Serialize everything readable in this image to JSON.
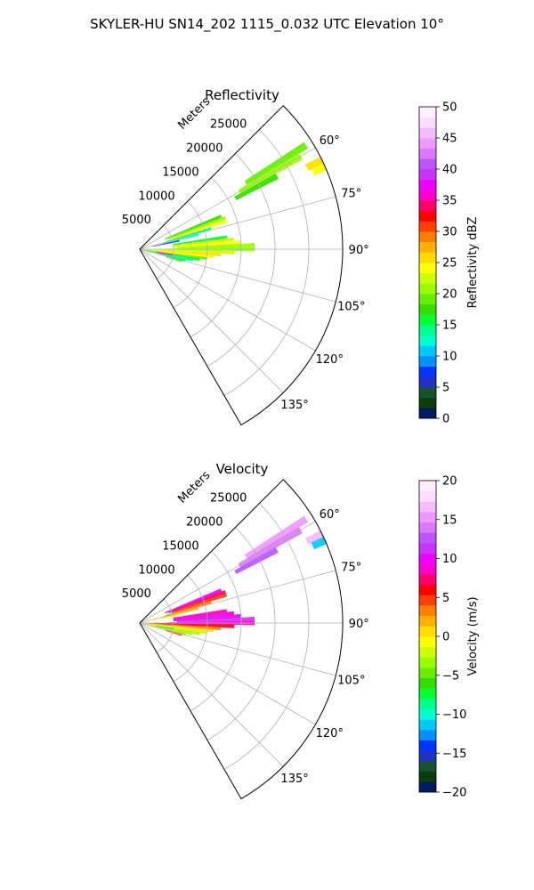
{
  "figure": {
    "suptitle": "SKYLER-HU  SN14_202  1115_0.032 UTC Elevation 10°"
  },
  "chart_data": [
    {
      "type": "heatmap",
      "projection": "polar-sector",
      "title": "Reflectivity",
      "radial_label": "Meters",
      "radial_ticks": [
        5000,
        10000,
        15000,
        20000,
        25000
      ],
      "radial_tick_labels": [
        "5000",
        "10000",
        "15000",
        "20000",
        "25000"
      ],
      "rmax": 30000,
      "azimuth_range_deg": [
        45,
        150
      ],
      "azimuth_ticks": [
        60,
        75,
        90,
        105,
        120,
        135
      ],
      "azimuth_tick_labels": [
        "60°",
        "75°",
        "90°",
        "105°",
        "120°",
        "135°"
      ],
      "grid": true,
      "colorbar": {
        "label": "Reflectivity dBZ",
        "min": 0,
        "max": 50,
        "ticks": [
          0,
          5,
          10,
          15,
          20,
          25,
          30,
          35,
          40,
          45,
          50
        ],
        "tick_labels": [
          "0",
          "5",
          "10",
          "15",
          "20",
          "25",
          "30",
          "35",
          "40",
          "45",
          "50"
        ],
        "colors": [
          "#001a66",
          "#0a3d0a",
          "#14532d",
          "#1f2fbf",
          "#0033ff",
          "#0090ff",
          "#00c8ff",
          "#00ffd0",
          "#00ff90",
          "#00ff33",
          "#33dd00",
          "#66ee00",
          "#99ff00",
          "#ccff00",
          "#ffff00",
          "#ffdd00",
          "#ffb000",
          "#ff8000",
          "#ff4000",
          "#ff0000",
          "#ff0066",
          "#ff00cc",
          "#ee00ff",
          "#cc33ff",
          "#bb55ff",
          "#dd77ff",
          "#ee99ff",
          "#f5bbff",
          "#fbddff",
          "#ffeeff"
        ]
      },
      "echo_cells": [
        {
          "az": 58,
          "r": [
            18500,
            29000
          ],
          "value": 19
        },
        {
          "az": 60,
          "r": [
            17000,
            27500
          ],
          "value": 20
        },
        {
          "az": 62,
          "r": [
            16000,
            23000
          ],
          "value": 18
        },
        {
          "az": 64,
          "r": [
            27500,
            30000
          ],
          "value": 25
        },
        {
          "az": 66,
          "r": [
            28000,
            30000
          ],
          "value": 24
        },
        {
          "az": 68,
          "r": [
            4000,
            13000
          ],
          "value": 18
        },
        {
          "az": 70,
          "r": [
            4500,
            13500
          ],
          "value": 20
        },
        {
          "az": 72,
          "r": [
            5000,
            13500
          ],
          "value": 24
        },
        {
          "az": 74,
          "r": [
            4000,
            11000
          ],
          "value": 14
        },
        {
          "az": 76,
          "r": [
            3500,
            9000
          ],
          "value": 12
        },
        {
          "az": 78,
          "r": [
            2000,
            6000
          ],
          "value": 6
        },
        {
          "az": 82,
          "r": [
            5000,
            13000
          ],
          "value": 16
        },
        {
          "az": 84,
          "r": [
            5000,
            14000
          ],
          "value": 22
        },
        {
          "az": 86,
          "r": [
            5000,
            15000
          ],
          "value": 24
        },
        {
          "az": 88,
          "r": [
            5500,
            17000
          ],
          "value": 21
        },
        {
          "az": 90,
          "r": [
            4000,
            17000
          ],
          "value": 20
        },
        {
          "az": 92,
          "r": [
            1000,
            14000
          ],
          "value": 22
        },
        {
          "az": 94,
          "r": [
            500,
            12000
          ],
          "value": 26
        },
        {
          "az": 96,
          "r": [
            500,
            11000
          ],
          "value": 24
        },
        {
          "az": 98,
          "r": [
            500,
            10000
          ],
          "value": 19
        },
        {
          "az": 100,
          "r": [
            500,
            9000
          ],
          "value": 15
        },
        {
          "az": 102,
          "r": [
            1000,
            8000
          ],
          "value": 13
        },
        {
          "az": 104,
          "r": [
            3000,
            7000
          ],
          "value": 18
        },
        {
          "az": 106,
          "r": [
            4000,
            6500
          ],
          "value": 16
        },
        {
          "az": 100,
          "r": [
            2500,
            5000
          ],
          "value": 37
        }
      ]
    },
    {
      "type": "heatmap",
      "projection": "polar-sector",
      "title": "Velocity",
      "radial_label": "Meters",
      "radial_ticks": [
        5000,
        10000,
        15000,
        20000,
        25000
      ],
      "radial_tick_labels": [
        "5000",
        "10000",
        "15000",
        "20000",
        "25000"
      ],
      "rmax": 30000,
      "azimuth_range_deg": [
        45,
        150
      ],
      "azimuth_ticks": [
        60,
        75,
        90,
        105,
        120,
        135
      ],
      "azimuth_tick_labels": [
        "60°",
        "75°",
        "90°",
        "105°",
        "120°",
        "135°"
      ],
      "grid": true,
      "colorbar": {
        "label": "Velocity (m/s)",
        "min": -20,
        "max": 20,
        "ticks": [
          -20,
          -15,
          -10,
          -5,
          0,
          5,
          10,
          15,
          20
        ],
        "tick_labels": [
          "−20",
          "−15",
          "−10",
          "−5",
          "0",
          "5",
          "10",
          "15",
          "20"
        ],
        "colors": [
          "#001a66",
          "#0a3d0a",
          "#14532d",
          "#1f2fbf",
          "#0033ff",
          "#0090ff",
          "#00c8ff",
          "#00ffd0",
          "#00ff90",
          "#00ff33",
          "#33dd00",
          "#66ee00",
          "#99ff00",
          "#ccff00",
          "#ffff00",
          "#ffdd00",
          "#ffb000",
          "#ff8000",
          "#ff4000",
          "#ff0000",
          "#ff0066",
          "#ff00cc",
          "#ee00ff",
          "#cc33ff",
          "#bb55ff",
          "#dd77ff",
          "#ee99ff",
          "#f5bbff",
          "#fbddff",
          "#ffeeff"
        ]
      },
      "echo_cells": [
        {
          "az": 58,
          "r": [
            18500,
            29000
          ],
          "value": 15
        },
        {
          "az": 60,
          "r": [
            17000,
            27500
          ],
          "value": 14
        },
        {
          "az": 62,
          "r": [
            16000,
            23000
          ],
          "value": 13
        },
        {
          "az": 64,
          "r": [
            27500,
            30000
          ],
          "value": 16
        },
        {
          "az": 66,
          "r": [
            28000,
            30000
          ],
          "value": -11
        },
        {
          "az": 68,
          "r": [
            4000,
            13000
          ],
          "value": 10
        },
        {
          "az": 70,
          "r": [
            4500,
            13500
          ],
          "value": 7
        },
        {
          "az": 72,
          "r": [
            5000,
            13500
          ],
          "value": 5
        },
        {
          "az": 74,
          "r": [
            4000,
            11000
          ],
          "value": 3
        },
        {
          "az": 76,
          "r": [
            3500,
            9000
          ],
          "value": 2
        },
        {
          "az": 78,
          "r": [
            2000,
            6000
          ],
          "value": -1
        },
        {
          "az": 82,
          "r": [
            5000,
            13000
          ],
          "value": 9
        },
        {
          "az": 84,
          "r": [
            5000,
            14000
          ],
          "value": 8
        },
        {
          "az": 86,
          "r": [
            5000,
            15000
          ],
          "value": 10
        },
        {
          "az": 88,
          "r": [
            5500,
            17000
          ],
          "value": 11
        },
        {
          "az": 90,
          "r": [
            4000,
            17000
          ],
          "value": 9
        },
        {
          "az": 92,
          "r": [
            1000,
            14000
          ],
          "value": 6
        },
        {
          "az": 94,
          "r": [
            500,
            12000
          ],
          "value": 3
        },
        {
          "az": 96,
          "r": [
            500,
            11000
          ],
          "value": 1
        },
        {
          "az": 98,
          "r": [
            500,
            10000
          ],
          "value": -2
        },
        {
          "az": 100,
          "r": [
            500,
            9000
          ],
          "value": -4
        },
        {
          "az": 102,
          "r": [
            1000,
            8000
          ],
          "value": -3
        },
        {
          "az": 104,
          "r": [
            3000,
            7000
          ],
          "value": 2
        },
        {
          "az": 106,
          "r": [
            4000,
            6500
          ],
          "value": 5
        },
        {
          "az": 100,
          "r": [
            2500,
            5000
          ],
          "value": -7
        }
      ]
    }
  ]
}
